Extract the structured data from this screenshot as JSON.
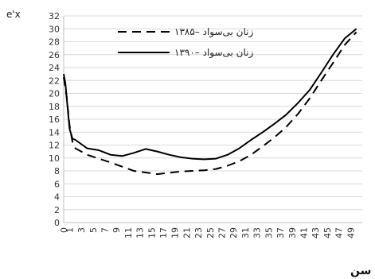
{
  "chart_data": {
    "type": "line",
    "ylabel": "e'x",
    "xlabel": "سن",
    "ylim": [
      0,
      32
    ],
    "yticks": [
      0,
      2,
      4,
      6,
      8,
      10,
      12,
      14,
      16,
      18,
      20,
      22,
      24,
      26,
      28,
      30,
      32
    ],
    "xlim": [
      0,
      51
    ],
    "xticks": [
      "0",
      "1",
      "3",
      "5",
      "7",
      "9",
      "11",
      "13",
      "15",
      "17",
      "19",
      "21",
      "23",
      "25",
      "27",
      "29",
      "31",
      "33",
      "35",
      "37",
      "39",
      "41",
      "43",
      "45",
      "47",
      "49"
    ],
    "grid": "horizontal",
    "legend_position": "top-center",
    "series": [
      {
        "name": "زنان بی‌سواد –۱۳۸۵",
        "style": "dashed",
        "color": "#000000",
        "x": [
          0,
          0.5,
          1,
          1.5,
          2,
          4,
          8,
          12,
          16,
          18,
          20,
          22,
          24,
          26,
          28,
          30,
          32,
          34,
          36,
          38,
          40,
          42,
          44,
          46,
          48,
          50
        ],
        "y": [
          22.5,
          19.5,
          15.0,
          12.5,
          11.5,
          10.5,
          9.3,
          8.0,
          7.5,
          7.7,
          7.9,
          8.0,
          8.1,
          8.3,
          8.8,
          9.5,
          10.5,
          11.8,
          13.2,
          14.8,
          16.8,
          19.2,
          22.0,
          24.7,
          27.5,
          29.5
        ]
      },
      {
        "name": "زنان بی‌سواد –۱۳۹۰",
        "style": "solid",
        "color": "#000000",
        "x": [
          0,
          0.3,
          0.7,
          1,
          1.5,
          2,
          4,
          6,
          8,
          10,
          12,
          14,
          16,
          18,
          20,
          22,
          24,
          26,
          28,
          30,
          32,
          34,
          36,
          38,
          40,
          42,
          44,
          46,
          48,
          50
        ],
        "y": [
          23.0,
          21.5,
          17.5,
          14.5,
          13.0,
          12.8,
          11.5,
          11.2,
          10.5,
          10.3,
          10.8,
          11.4,
          11.0,
          10.5,
          10.1,
          9.9,
          9.8,
          9.9,
          10.5,
          11.5,
          12.8,
          14.0,
          15.3,
          16.7,
          18.5,
          20.5,
          23.2,
          26.0,
          28.5,
          30.0
        ]
      }
    ]
  }
}
